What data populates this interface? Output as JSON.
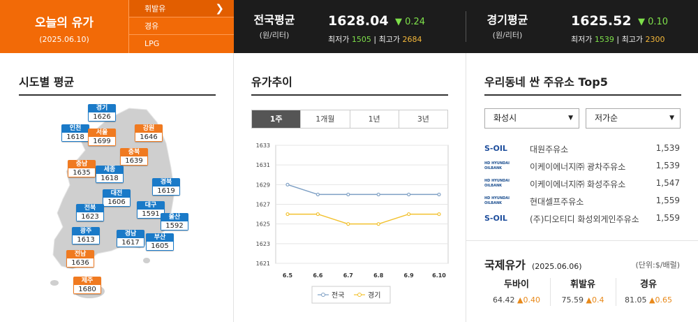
{
  "header": {
    "title": "오늘의 유가",
    "date": "(2025.06.10)",
    "fuel_menu": [
      {
        "label": "휘발유",
        "active": true
      },
      {
        "label": "경유",
        "active": false
      },
      {
        "label": "LPG",
        "active": false
      }
    ],
    "national": {
      "label": "전국평균",
      "unit": "(원/리터)",
      "price": "1628.04",
      "change": "▼ 0.24",
      "min_label": "최저가",
      "min": "1505",
      "max_label": "최고가",
      "max": "2684"
    },
    "gyeonggi": {
      "label": "경기평균",
      "unit": "(원/리터)",
      "price": "1625.52",
      "change": "▼ 0.10",
      "min_label": "최저가",
      "min": "1539",
      "max_label": "최고가",
      "max": "2300"
    }
  },
  "regions": {
    "title": "시도별 평균",
    "markers": [
      {
        "name": "경기",
        "value": "1626",
        "color": "blue"
      },
      {
        "name": "인천",
        "value": "1618",
        "color": "blue"
      },
      {
        "name": "서울",
        "value": "1699",
        "color": "orange"
      },
      {
        "name": "강원",
        "value": "1646",
        "color": "orange"
      },
      {
        "name": "충북",
        "value": "1639",
        "color": "orange"
      },
      {
        "name": "충남",
        "value": "1635",
        "color": "orange"
      },
      {
        "name": "세종",
        "value": "1618",
        "color": "blue"
      },
      {
        "name": "경북",
        "value": "1619",
        "color": "blue"
      },
      {
        "name": "대전",
        "value": "1606",
        "color": "blue"
      },
      {
        "name": "전북",
        "value": "1623",
        "color": "blue"
      },
      {
        "name": "대구",
        "value": "1591",
        "color": "blue"
      },
      {
        "name": "울산",
        "value": "1592",
        "color": "blue"
      },
      {
        "name": "광주",
        "value": "1613",
        "color": "blue"
      },
      {
        "name": "경남",
        "value": "1617",
        "color": "blue"
      },
      {
        "name": "부산",
        "value": "1605",
        "color": "blue"
      },
      {
        "name": "전남",
        "value": "1636",
        "color": "orange"
      },
      {
        "name": "제주",
        "value": "1680",
        "color": "orange"
      }
    ]
  },
  "trend": {
    "title": "유가추이",
    "tabs": [
      {
        "label": "1주",
        "active": true
      },
      {
        "label": "1개월",
        "active": false
      },
      {
        "label": "1년",
        "active": false
      },
      {
        "label": "3년",
        "active": false
      }
    ]
  },
  "chart_data": {
    "type": "line",
    "x": [
      "6.5",
      "6.6",
      "6.7",
      "6.8",
      "6.9",
      "6.10"
    ],
    "series": [
      {
        "name": "전국",
        "values": [
          1629,
          1628,
          1628,
          1628,
          1628,
          1628
        ],
        "color": "#7d9fc4"
      },
      {
        "name": "경기",
        "values": [
          1626,
          1626,
          1625,
          1625,
          1626,
          1626
        ],
        "color": "#f2c12e"
      }
    ],
    "ylim": [
      1621,
      1633
    ],
    "yticks": [
      "1633",
      "1631",
      "1629",
      "1627",
      "1625",
      "1623",
      "1621"
    ],
    "grid": true,
    "legend": "bottom"
  },
  "top5": {
    "title": "우리동네 싼 주유소 Top5",
    "region_select": "화성시",
    "sort_select": "저가순",
    "stations": [
      {
        "brand": "S-OIL",
        "name": "대원주유소",
        "price": "1,539"
      },
      {
        "brand": "HD HYUNDAI OILBANK",
        "name": "이케이에너지㈜ 광차주유소",
        "price": "1,539"
      },
      {
        "brand": "HD HYUNDAI OILBANK",
        "name": "이케이에너지㈜ 화성주유소",
        "price": "1,547"
      },
      {
        "brand": "HD HYUNDAI OILBANK",
        "name": "현대셀프주유소",
        "price": "1,559"
      },
      {
        "brand": "S-OIL",
        "name": "(주)디오티디 화성외게인주유소",
        "price": "1,559"
      }
    ]
  },
  "intl": {
    "title": "국제유가",
    "date": "(2025.06.06)",
    "unit": "(단위:$/배럴)",
    "items": [
      {
        "name": "두바이",
        "price": "64.42",
        "change": "▲0.40"
      },
      {
        "name": "휘발유",
        "price": "75.59",
        "change": "▲0.4"
      },
      {
        "name": "경유",
        "price": "81.05",
        "change": "▲0.65"
      }
    ]
  }
}
